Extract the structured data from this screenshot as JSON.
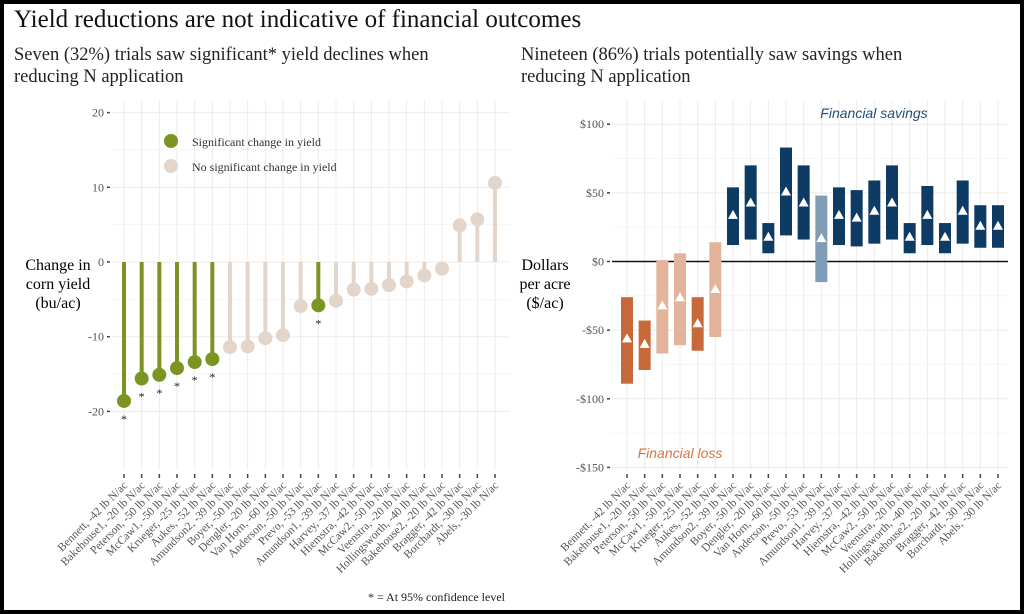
{
  "title": "Yield reductions are not indicative of financial outcomes",
  "chart_data": [
    {
      "type": "lollipop",
      "subtitle_lines": [
        "Seven (32%) trials saw significant* yield declines when",
        "reducing N application"
      ],
      "ylabel_lines": [
        "Change in",
        "corn yield",
        "(bu/ac)"
      ],
      "ylim": [
        -22,
        22
      ],
      "yticks": [
        20,
        10,
        0,
        -10,
        -20
      ],
      "grid": true,
      "legend": {
        "placement": "top-left",
        "items": [
          {
            "label": "Significant change in yield",
            "color": "#7b9422"
          },
          {
            "label": "No significant change in yield",
            "color": "#e4d5cb"
          }
        ]
      },
      "categories": [
        "Bennett, -42 lb N/ac",
        "Bakehouse1, -20 lb N/ac",
        "Peterson, -50 lb N/ac",
        "McCaw1, -50 lb N/ac",
        "Krueger, -25 lb N/ac",
        "Aukes, -52 lb N/ac",
        "Amundson2, -39 lb N/ac",
        "Boyer, -50 lb N/ac",
        "Dengler, -20 lb N/ac",
        "Van Horn, -60 lb N/ac",
        "Anderson, -50 lb N/ac",
        "Prevo, -53 lb N/ac",
        "Amundson1, -39 lb N/ac",
        "Harvey, -37 lb N/ac",
        "Hiemstra, -42 lb N/ac",
        "McCaw2, -50 lb N/ac",
        "Veenstra, -20 lb N/ac",
        "Hollingsworth, -40 lb N/ac",
        "Bakehouse2, -20 lb N/ac",
        "Bragger, -42 lb N/ac",
        "Borchardt, -30 lb N/ac",
        "Abels, -30 lb N/ac"
      ],
      "values": [
        -18.6,
        -15.6,
        -15.1,
        -14.2,
        -13.4,
        -13.0,
        -11.4,
        -11.3,
        -10.2,
        -9.8,
        -5.9,
        -5.8,
        -5.2,
        -3.7,
        -3.6,
        -3.1,
        -2.6,
        -1.8,
        -0.9,
        4.9,
        5.7,
        10.6
      ],
      "significant": [
        true,
        true,
        true,
        true,
        true,
        true,
        false,
        false,
        false,
        false,
        false,
        true,
        false,
        false,
        false,
        false,
        false,
        false,
        false,
        false,
        false,
        false
      ],
      "significance_marker": "*",
      "footnote": "* = At 95% confidence level"
    },
    {
      "type": "range-bar",
      "subtitle_lines": [
        "Nineteen (86%) trials potentially saw savings when",
        "reducing N application"
      ],
      "ylabel_lines": [
        "Dollars",
        "per acre",
        "($/ac)"
      ],
      "ylim": [
        -150,
        100
      ],
      "yticks": [
        100,
        50,
        0,
        -50,
        -100,
        -150
      ],
      "ytick_labels": [
        "$100",
        "$50",
        "$0",
        "-$50",
        "-$100",
        "-$150"
      ],
      "grid": true,
      "annotations": [
        {
          "text": "Financial savings",
          "color": "#1f4e79"
        },
        {
          "text": "Financial loss",
          "color": "#d2763f"
        }
      ],
      "categories": [
        "Bennett, -42 lb N/ac",
        "Bakehouse1, -20 lb N/ac",
        "Peterson, -50 lb N/ac",
        "McCaw1, -50 lb N/ac",
        "Krueger, -25 lb N/ac",
        "Aukes, -52 lb N/ac",
        "Amundson2, -39 lb N/ac",
        "Boyer, -50 lb N/ac",
        "Dengler, -20 lb N/ac",
        "Van Horn, -60 lb N/ac",
        "Anderson, -50 lb N/ac",
        "Prevo, -53 lb N/ac",
        "Amundson1, -39 lb N/ac",
        "Harvey, -37 lb N/ac",
        "Hiemstra, -42 lb N/ac",
        "McCaw2, -50 lb N/ac",
        "Veenstra, -20 lb N/ac",
        "Hollingsworth, -40 lb N/ac",
        "Bakehouse2, -20 lb N/ac",
        "Bragger, -42 lb N/ac",
        "Borchardt, -30 lb N/ac",
        "Abels, -30 lb N/ac"
      ],
      "low": [
        -89,
        -79,
        -67,
        -61,
        -65,
        -55,
        12,
        16,
        6,
        19,
        16,
        -15,
        12,
        11,
        13,
        16,
        6,
        12,
        6,
        13,
        10,
        10
      ],
      "high": [
        -26,
        -43,
        1,
        6,
        -26,
        14,
        54,
        70,
        28,
        83,
        70,
        48,
        54,
        52,
        59,
        70,
        28,
        55,
        28,
        59,
        41,
        41
      ],
      "mid": [
        -56,
        -60,
        -32,
        -26,
        -45,
        -20,
        34,
        43,
        18,
        51,
        43,
        17,
        34,
        32,
        37,
        43,
        18,
        34,
        18,
        37,
        26,
        26
      ],
      "colors": [
        "#c8693a",
        "#c8693a",
        "#e3b49a",
        "#e3b49a",
        "#c8693a",
        "#e3b49a",
        "#0d3b63",
        "#0d3b63",
        "#0d3b63",
        "#0d3b63",
        "#0d3b63",
        "#7f9db6",
        "#0d3b63",
        "#0d3b63",
        "#0d3b63",
        "#0d3b63",
        "#0d3b63",
        "#0d3b63",
        "#0d3b63",
        "#0d3b63",
        "#0d3b63",
        "#0d3b63"
      ]
    }
  ]
}
